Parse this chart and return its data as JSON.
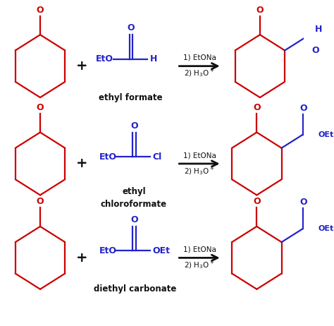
{
  "background_color": "#ffffff",
  "red_color": "#cc0000",
  "blue_color": "#2222cc",
  "black_color": "#111111",
  "row1_label": "ethyl formate",
  "row2_label1": "ethyl",
  "row2_label2": "chloroformate",
  "row3_label": "diethyl carbonate",
  "figsize": [
    4.74,
    4.62
  ],
  "dpi": 100
}
